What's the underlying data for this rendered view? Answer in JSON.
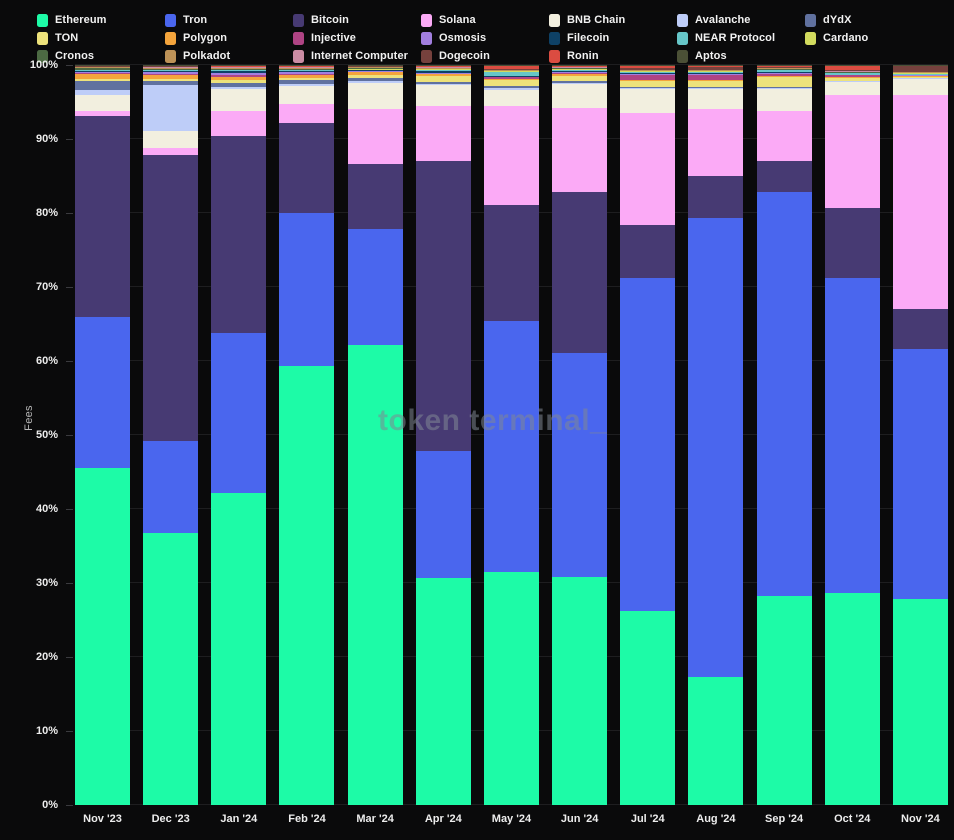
{
  "watermark": "token terminal_",
  "colors": {
    "background": "#0a0a0b",
    "gridline": "#1e1e20",
    "axis_text": "#ededed",
    "legend_text": "#f2f2f2"
  },
  "chart_data": {
    "type": "bar",
    "variant": "stacked-100-percent",
    "title": "",
    "xlabel": "",
    "ylabel": "Fees",
    "ylim": [
      0,
      100
    ],
    "grid": true,
    "legend_position": "top",
    "y_ticks": [
      "0%",
      "10%",
      "20%",
      "30%",
      "40%",
      "50%",
      "60%",
      "70%",
      "80%",
      "90%",
      "100%"
    ],
    "categories": [
      "Nov '23",
      "Dec '23",
      "Jan '24",
      "Feb '24",
      "Mar '24",
      "Apr '24",
      "May '24",
      "Jun '24",
      "Jul '24",
      "Aug '24",
      "Sep '24",
      "Oct '24",
      "Nov '24"
    ],
    "series": [
      {
        "name": "Ethereum",
        "color": "#1DFBA7",
        "values": [
          45.6,
          36.8,
          42.2,
          59.3,
          62.2,
          30.7,
          31.5,
          30.8,
          26.2,
          17.3,
          28.3,
          28.7,
          27.8
        ]
      },
      {
        "name": "Tron",
        "color": "#4A66EE",
        "values": [
          20.3,
          12.4,
          21.6,
          20.7,
          15.6,
          17.1,
          33.9,
          30.3,
          45.0,
          62.0,
          54.6,
          42.5,
          33.8
        ]
      },
      {
        "name": "Bitcoin",
        "color": "#473A73",
        "values": [
          27.2,
          38.7,
          26.6,
          12.2,
          8.8,
          39.2,
          15.7,
          21.8,
          7.2,
          5.7,
          4.1,
          9.5,
          5.4
        ]
      },
      {
        "name": "Solana",
        "color": "#FBAAF6",
        "values": [
          0.7,
          0.9,
          3.4,
          2.6,
          7.4,
          7.4,
          13.3,
          11.3,
          15.1,
          9.0,
          6.8,
          15.2,
          29.0
        ]
      },
      {
        "name": "BNB Chain",
        "color": "#F2EFDF",
        "values": [
          2.2,
          2.3,
          2.9,
          2.4,
          3.6,
          2.8,
          2.2,
          3.2,
          3.2,
          2.7,
          2.9,
          1.8,
          2.1
        ]
      },
      {
        "name": "Avalanche",
        "color": "#BECDF8",
        "values": [
          0.6,
          6.2,
          0.4,
          0.3,
          0.3,
          0.2,
          0.3,
          0.2,
          0.2,
          0.2,
          0.2,
          0.1,
          0.1
        ]
      },
      {
        "name": "dYdX",
        "color": "#60719F",
        "values": [
          1.3,
          0.6,
          0.5,
          0.5,
          0.4,
          0.3,
          0.2,
          0.2,
          0.2,
          0.2,
          0.15,
          0.1,
          0.05
        ]
      },
      {
        "name": "TON",
        "color": "#EDE27B",
        "values": [
          0.2,
          0.2,
          0.4,
          0.3,
          0.4,
          0.8,
          0.8,
          0.7,
          0.7,
          0.7,
          1.3,
          0.4,
          0.2
        ]
      },
      {
        "name": "Polygon",
        "color": "#F4A43C",
        "values": [
          0.7,
          0.5,
          0.4,
          0.3,
          0.3,
          0.2,
          0.2,
          0.3,
          0.2,
          0.2,
          0.15,
          0.1,
          0.05
        ]
      },
      {
        "name": "Injective",
        "color": "#AF4484",
        "values": [
          0.1,
          0.2,
          0.2,
          0.2,
          0.1,
          0.1,
          0.2,
          0.1,
          0.7,
          0.7,
          0.3,
          0.2,
          0.05
        ]
      },
      {
        "name": "Osmosis",
        "color": "#A27FDF",
        "values": [
          0.1,
          0.2,
          0.4,
          0.3,
          0.1,
          0.1,
          0.1,
          0.1,
          0.1,
          0.1,
          0.1,
          0.05,
          0.05
        ]
      },
      {
        "name": "Filecoin",
        "color": "#0E4166",
        "values": [
          0.2,
          0.2,
          0.2,
          0.1,
          0.1,
          0.2,
          0.1,
          0.2,
          0.1,
          0.1,
          0.1,
          0.05,
          0.05
        ]
      },
      {
        "name": "NEAR Protocol",
        "color": "#66C6C9",
        "values": [
          0.1,
          0.1,
          0.1,
          0.1,
          0.1,
          0.2,
          0.5,
          0.2,
          0.2,
          0.2,
          0.3,
          0.2,
          0.2
        ]
      },
      {
        "name": "Cardano",
        "color": "#D2DB5E",
        "values": [
          0.1,
          0.1,
          0.1,
          0.1,
          0.1,
          0.1,
          0.1,
          0.1,
          0.1,
          0.1,
          0.1,
          0.1,
          0.1
        ]
      },
      {
        "name": "Cronos",
        "color": "#4C6A43",
        "values": [
          0.2,
          0.1,
          0.1,
          0.1,
          0.1,
          0.05,
          0.05,
          0.05,
          0.05,
          0.05,
          0.05,
          0.05,
          0.05
        ]
      },
      {
        "name": "Polkadot",
        "color": "#BD9257",
        "values": [
          0.1,
          0.1,
          0.1,
          0.1,
          0.1,
          0.1,
          0.1,
          0.1,
          0.1,
          0.1,
          0.1,
          0.05,
          0.05
        ]
      },
      {
        "name": "Internet Computer",
        "color": "#CB8CA4",
        "values": [
          0.1,
          0.1,
          0.1,
          0.1,
          0.1,
          0.1,
          0.1,
          0.05,
          0.05,
          0.05,
          0.05,
          0.05,
          0.05
        ]
      },
      {
        "name": "Dogecoin",
        "color": "#76413D",
        "values": [
          0.05,
          0.2,
          0.1,
          0.1,
          0.1,
          0.1,
          0.1,
          0.1,
          0.2,
          0.3,
          0.2,
          0.2,
          0.8
        ]
      },
      {
        "name": "Ronin",
        "color": "#DB4C41",
        "values": [
          0.05,
          0.05,
          0.1,
          0.1,
          0.05,
          0.1,
          0.4,
          0.1,
          0.3,
          0.2,
          0.1,
          0.55,
          0.05
        ]
      },
      {
        "name": "Aptos",
        "color": "#4B5036",
        "values": [
          0.1,
          0.05,
          0.1,
          0.1,
          0.05,
          0.1,
          0.1,
          0.1,
          0.1,
          0.1,
          0.1,
          0.1,
          0.05
        ]
      }
    ]
  }
}
